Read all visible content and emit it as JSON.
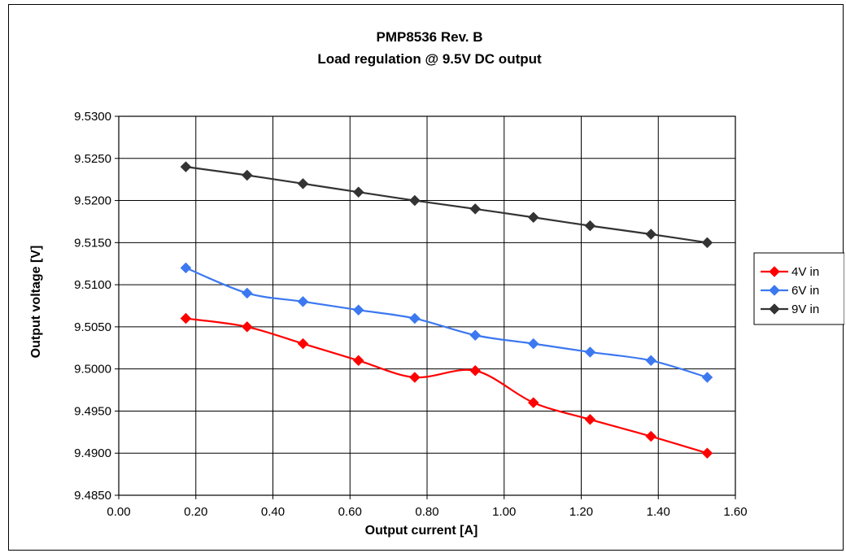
{
  "chart_data": {
    "type": "line",
    "title": "PMP8536 Rev. B",
    "subtitle": "Load regulation @ 9.5V DC output",
    "xlabel": "Output current [A]",
    "ylabel": "Output voltage [V]",
    "xlim": [
      0,
      1.6
    ],
    "ylim": [
      9.485,
      9.53
    ],
    "xticks": [
      "0.00",
      "0.20",
      "0.40",
      "0.60",
      "0.80",
      "1.00",
      "1.20",
      "1.40",
      "1.60"
    ],
    "xtick_values": [
      0,
      0.2,
      0.4,
      0.6,
      0.8,
      1.0,
      1.2,
      1.4,
      1.6
    ],
    "yticks": [
      "9.4850",
      "9.4900",
      "9.4950",
      "9.5000",
      "9.5050",
      "9.5100",
      "9.5150",
      "9.5200",
      "9.5250",
      "9.5300"
    ],
    "ytick_values": [
      9.485,
      9.49,
      9.495,
      9.5,
      9.505,
      9.51,
      9.515,
      9.52,
      9.525,
      9.53
    ],
    "grid": true,
    "legend_position": "right",
    "x": [
      0.174,
      0.333,
      0.478,
      0.622,
      0.768,
      0.925,
      1.076,
      1.223,
      1.381,
      1.527
    ],
    "series": [
      {
        "name": "4V in",
        "color": "#ff0000",
        "values": [
          9.506,
          9.505,
          9.503,
          9.501,
          9.499,
          9.4998,
          9.496,
          9.494,
          9.492,
          9.49
        ]
      },
      {
        "name": "6V in",
        "color": "#3c78f0",
        "values": [
          9.512,
          9.509,
          9.508,
          9.507,
          9.506,
          9.504,
          9.503,
          9.502,
          9.501,
          9.499
        ]
      },
      {
        "name": "9V in",
        "color": "#333333",
        "values": [
          9.524,
          9.523,
          9.522,
          9.521,
          9.52,
          9.519,
          9.518,
          9.517,
          9.516,
          9.515
        ]
      }
    ]
  }
}
